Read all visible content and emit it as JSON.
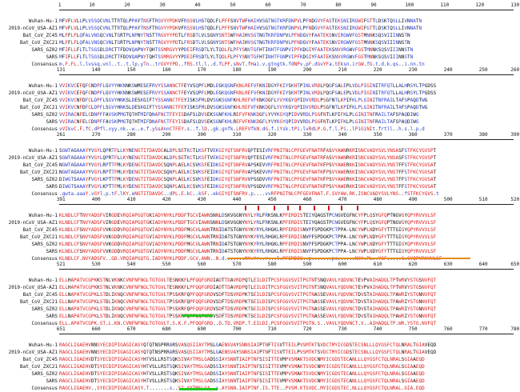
{
  "alignment": {
    "species": [
      "Wuhan-Hu-1",
      "2019-nCoV_USA-AZ1",
      "Bat_CoV_ZC45",
      "Bat_CoV_ZXC21",
      "SARS_GZ02",
      "SARS",
      "Consensus"
    ],
    "colors": {
      "identical": "#e01919",
      "similar": "#2a3fd6",
      "other": "#111111"
    },
    "blocks": [
      {
        "ticks": [
          "1",
          "10",
          "20",
          "30",
          "40",
          "50",
          "60",
          "70",
          "80",
          "90",
          "100",
          "110",
          "120",
          "130"
        ],
        "rows": [
          "MFVFLVLLPLVSSQCVNLTTRTQLPPAYTNSFTRGVYYPDKVFRSSVLHSTQDLFLPFFSNVTWFHAIHVSGTNGTKRFDNPVLPFNDGVYFASTEKSNIIRGWIFGTTLDSKTQSLLIVNNATN",
          "MFVFLVLLPLVSSQCVNLTTRTQLPPAYTNSFTRGVYYPDKVFRSSVLHSTQDLFLPFFSNVTWFHAIHVSGTNGTKRFDNPVLPFNDGVYFASTEKSNIIRGWIFGTTLDSKTQSLLIVNNATN",
          "MLFFLFLQFALVNSQCVNLTGRTPLNPNYTNSTTRGVYYPDTLFRSDTLVLSGNYSNTSWFHAIHVSGTNGTKRFDNPVLPFNDGVYFAATEKSNVIRGWVFGSTMNNKSQSVIIINNSTN",
          "MLFFLFLQFALVNSQCVNLTGRTPLNPNYTNSTTRGVYYPDTLFRSDTLVLSGNYSNTSWFHAIHVSGTNGTKRFDNPVLPFNDGVYFAATEKSNVIRGWVFGSTMNNKSQSVIIINNSTN",
          "MFIFLLFLTLTSGSDLDRCTTFDDVQAPNYTQHTSSMRGVYYPDEIFRSDTLYLTQDLFLPFYSNVTGFHTINHTFGNPVIPFKDGIYFAATEKSNVVRGWVFGSTMNNKSQSVIIINNSTN",
          "MFIFLLFLTLTSGSDLDRCTTFDDVQAPNYTQHTSSMRGVYYPDEIFRSDTLYLTQDLFLPFYSNVTGFHTINHTFGNPVIPFKDGIYFAATEKSNVVRGWVFGSTMNNKSQSVIIINNSTN",
          "m.F.FL.l.lvssq.vnl..t..t.lp.yTn..trGVYYPD..fRS.tl.l..d.fLPF.sNvT.fHai.v.gtngtk.fdNPv.pF.dGvYFa.tEksn.irGW.fG.t.d.k.qs..i.nn.tn"
        ]
      },
      {
        "ticks": [
          "131",
          "140",
          "150",
          "160",
          "170",
          "180",
          "190",
          "200",
          "210",
          "220",
          "230",
          "240",
          "250",
          "260"
        ],
        "rows": [
          "VVIKVCEFQFCNDPFLGVYYHKNNKSWMESEFRVYSSANNCTFEYVSQPFLMDLEGKQGNFKNLREFVFKNIDGYFKIYSKHTPINLVRDLPQGFSALEPLVDLPIGINITRFQTLLALHRSYLTPGDSS",
          "VVIKVCEFQFCNDPFLGVYYHKNNKSWMESEFRVYSSANNCTFEYVSQPFLMDLEGKQGNFKNLREFVFKNIDGYFKIYSKHTPINLVRDLPQGFSALEPLVDLPIGINITRFQTLLALHRSYLTPGDSS",
          "VVIKVCNFDFCLDPFLSGVYHNKSLDESKGIFTYSSANNCTFEYISKSFMLDVSGKSGNFKHLREFVFKNKDGFLYVYKGYQPIDVVRDLPSGFNTLKPIFKLPLGINITNFRAILTAFSPAQDTWG",
          "VVIKVCNFDFCLDPFLSGVYHNKSLDESKGIFTYSSANNCTFEYISKSFMLDVSGKSGNFKHLREFVFKNKDGFLYVYKGYQPIDVVRDLPSGFNTLKPIFKLPLGINITNFRAILTAFSPAQDTWG",
          "VVIRACNFELCDNPFFAVSKPMGTQTHTMIFDNAFNCTFEYISDAFSLDVSEKSGNFKHLREFVFKNKDGFLYVYKGYQPIDVVRDLPSGFNTLKPIFKLPLGINITNFRAILTAFSPAQDIWG",
          "VVIRACNFELCDNPFFAVSKPMGTQTHTMIFDNAFNCTFEYISDAFSLDVSEKSGNFKHLREFVFKNKDGFLYVYKGYQPIDVVRDLPSGFNTLKPIFKLPLGINITNFRAILTAFSPAQDIWG",
          "vVIkvC.F.fC.dPfl.vyy.nk..w..e.f.ySsAnnCTFEY.s..f.lD..gk.gnfk.LREFVfkN.dG.f.iYsk.tPi.lvRdLP.G.f.l.Pi..lPiGiNIt.frtll..h.s.l.p.d"
        ]
      },
      {
        "ticks": [
          "261",
          "270",
          "280",
          "290",
          "300",
          "310",
          "320",
          "330",
          "340",
          "350",
          "360",
          "370",
          "380",
          "390"
        ],
        "rows": [
          "SGWTAGAAAYYVGYLQPRTFLLKYNENGTITDAVDCALDPLSETKCTLKSFTVEKGIYQTSNFRVQPTESIVRFPNITNLCPFGEVFNATRFASVYAWNRKRISNCVADYSVLYNSASFSTFKCYGVSPT",
          "SGWTAGAAAYYVGYLQPRTFLLKYNENGTITDAVDCALDPLSETKCTLKSFTVEKGIYQTSNFRVQPTESIVRFPNITNLCPFGEVFNATRFASVYAWNRKRISNCVADYSVLYNSASFSTFKCYGVSPT",
          "NGWTAGAAAYYVGYLRPTTFMLKYDENGTITDAVDCSQNPLAELKCSVKSFEIDKGIYQTSNFRVAPSKEVVRFPNITNLCPFGEVFNATKFPSVYAWERKKISNCVADYSVLYNSTFFSTFKCYGVSAT",
          "NGWTAGAAAYYVGYLRPTTFMLKYDENGTITDAVDCSQNPLAELKCSVKSFEIDKGIYQTSNFRVAPSKEVVRFPNITNLCPFGEVFNATKFPSVYAWERKKISNCVADYSVLYNSTFFSTFKCYGVSAT",
          "DIWGTSAAAYFVGYLKPTTFMLKYDENGTITDAVDCSQNPLAELKCSVKSFEIDKGIYQTSNFRVVPSGDVVRFPNITNLCPFGEVFNATKFPSVYAWERKKISNCVADYSVLYNSTFFSTFKCYGVSAT",
          "DIWGTSAAAYFVGYLKPTTFMLKYDENGTITDAVDCSQNPLAELKCSVKSFEIDKGIYQTSNFRVVPSGDVVRFPNITNLCPFGEVFNATKFPSVYAWERKKISNCVADYSVLYNSTFFSTFKCYGVSAT",
          ".gwta.aaaY.vGYl.p.tF.lKY.eNGTITDAVDC..dPL.E.kC..kSF..ekGIYQTSNFRV.p....vvRFPNITNLCPFGEVFNAT.F.SVYAW.RK.ISNCVADYSVLYNS..fSTFKCYGVS.t"
        ]
      },
      {
        "ticks": [
          "391",
          "400",
          "410",
          "420",
          "430",
          "440",
          "450",
          "460",
          "470",
          "480",
          "490",
          "500",
          "510",
          "520"
        ],
        "rows": [
          "KLNDLCFTNVYADSFVIRGDEVRQIAPGQTGKIADYNYKLPDDFTGCVIAWNSNNLDSKVGGNYNYLYRLFRKSNLKPFERDISTEIYQAGSTPCNGVEGFNCYFPLQSYGFQPTNGVGYQPYRVVVLSF",
          "KLNDLCFTNVYADSFVIRGDEVRQIAPGQTGKIADYNYKLPDDFTGCVIAWNSNNLDSKVGGNYNYLYRLFRKSNLKPFERDISTEIYQAGSTPCNGVEGFNCYFPLQSYGFQPTNGVGYQPYRVVVLSF",
          "KLNDLCFSNVYADSFVVKGDDVRQIAPGQTGVIADYNYKLPDDFMGCVLAWNTRNIDATSTGNYNYKYRYLRHGKLRPFERDISNVPFSPDGKPCTPPA-LNCYWPLNDYGFYTTTGIGYQPYRVVVLSF",
          "KLNDLCFSNVYADSFVVKGDDVRQIAPGQTGVIADYNYKLPDDFMGCVLAWNTRNIDATSTGNYNYKYRYLRHGKLRPFERDISNVPFSPDGKPCTPPA-LNCYWPLNDYGFYTTTGIGYQPYRVVVLSF",
          "KLNDLCFSNVYADSFVVKGDDVRQIAPGQTGVIADYNYKLPDDFMGCVLAWNTRNIDATSTGNYNYKYRYLRHGKLRPFERDISNVPFSPDGKPCTPPA-LNCYWPLNDYGFYTTTGIGYQPYRVVVLSF",
          "KLNDLCFSNVYADSFVVKGDDVRQIAPGQTGVIADYNYKLPDDFMGCVLAWNTRNIDATSTGNYNYKYRYLRHGKLRPFERDISNVPFSPDGKPCTPPA-LNCYWPLNDYGFYTTTGIGYQPYRVVVLSF",
          "KLNDLCF.NVYADSFV..GD.VRQIAPGQTG.IADYNYKLPDDF.GCV.AWN..N.d.......NY.Yr..r...l.PFERDIS..p.......pc......NCY.PL..YGF.....G.GYQPYRVVVLSF"
        ]
      },
      {
        "ticks": [
          "521",
          "530",
          "540",
          "550",
          "560",
          "570",
          "580",
          "590",
          "600",
          "610",
          "620",
          "630",
          "640",
          "650"
        ],
        "rows": [
          "ELLHAPATVCGPKKSTNLVKNKCVNFNFNGLTGTGVLTESNKKFLPFQQFGRDIADTTDAVRDPQTLEILDITPCSFGGVSVITPGTNTSNQVAVLYQDVNCTEVPVAIHADQLTPTWRVYSTGSNVFQT",
          "ELLHAPATVCGPKKSTNLVKNKCVNFNFNGLTGTGVLTESNKKFLPFQQFGRDIADTTDAVRDPQTLEILDITPCSFGGVSVITPGTNTSNQVAVLYQDVNCTEVPVAIHADQLTPTWRVYSTGSNVFQT",
          "ELLNAPATVCGPKLSTDLIKNQCVNFNFNGLTGTGVLTPSSKRFQPFQQFGRDVSDFTDSVRDPKTSEILDISPCSFGGVSVITPGTNASSEVAVLYQDVNCTDVSTAIHADQLTPAWRIYSTGNNVFQT",
          "ELLNAPATVCGPKLSTDLIKNQCVNFNFNGLTGTGVLTPSSKRFQPFQQFGRDVSDFTDSVRDPKTSEILDISPCSFGGVSVITPGTNASSEVAVLYQDVNCTDVSTAIHADQLTPAWRIYSTGNNVFQT",
          "ELLNAPATVCGPKLSTDLIKNQCVNFNFNGLTGTGVLTPSSKRFQPFQQFGRDVSDFTDSVRDPKTSEILDISPCSFGGVSVITPGTNASSEVAVLYQDVNCTDVSTAIHADQLTPAWRIYSTGNNVFQT",
          "ELLNAPATVCGPKLSTDLIKNQCVNFNFNGLTGTGVLTPSSKRFQPFQQFGRDVSDFTDSVRDPKTSEILDISPCSFGGVSVITPGTNASSEVAVLYQDVNCTDVSTAIHADQLTPAWRIYSTGNNVFQT",
          "ELL.APATVCGPK.ST.L.KN.CVNFNFNGLTGTGVLT.S.K.F.PFQQFGRD..D.TD.VRDP.T.EILDI.PCSFGGVSVITPGTN.S..VAVLYQDVNCT.V..AIHADQLTP.WR.YSTG.NVFQT"
        ]
      },
      {
        "ticks": [
          "651",
          "660",
          "670",
          "680",
          "690",
          "700",
          "710",
          "720",
          "730",
          "740",
          "750",
          "760",
          "770",
          "780"
        ],
        "rows": [
          "RAGCLIGAEHVNNSYECDIPIGAGICASYQTQTNSPRRARSVASQSIIAYTMSLGAENSVAYSNNSIAIPTNFTISVTTEILPVSMTKTSVDCTMYICGDSTECSNLLLQYGSFCTQLNRALTGIAVEQD",
          "RAGCLIGAEHVNNSYECDIPIGAGICASYQTQTNSPRRARSVASQSIIAYTMSLGAENSVAYSNNSIAIPTNFTISVTTEILPVSMTKTSVDCTMYICGDSTECSNLLLQYGSFCTQLNRALTGIAVEQD",
          "RAGCLIGAEHVDTSYECDIPIGAGICASYHTVSLLRSTSQKSIVAYTMSLGADSSIAYSNNTIAIPTNFSISITTEVMPVSMAKTSVDCNMYICGDSTECANLLLQYGSFCTQLNRALSGIAAEQD",
          "RAGCLIGAEHVDTSYECDIPIGAGICASYHTVSLLRSTSQKSIVAYTMSLGADSSIAYSNNTIAIPTNFSISITTEVMPVSMAKTSVDCNMYICGDSTECANLLLQYGSFCTQLNRALSGIAAEQD",
          "RAGCLIGAEHVDTSYECDIPIGAGICASYHTVSLLRSTSQKSIVAYTMSLGADSSIAYSNNTIAIPTNFSISITTEVMPVSMAKTSVDCNMYICGDSTECANLLLQYGSFCTQLNRALSGIAAEQD",
          "RAGCLIGAEHVDTSYECDIPIGAGICASYHTVSLLRSTSQKSIVAYTMSLGADSSIAYSNNTIAIPTNFSISITTEVMPVSMAKTSVDCNMYICGDSTECANLLLQYGSFCTQLNRALSGIAAEQD",
          "RAGCLIGAEHV..SYECDIPIGAGICASY.T.......s..SI.AYTMSLGA..s.AYSNN.IAIPTNF.IS.TTE..PVSM.KTSVDC.MYICGDSTEC.NLLLQYGSFCTQLNRAL.GIA.EQD"
        ]
      }
    ]
  }
}
